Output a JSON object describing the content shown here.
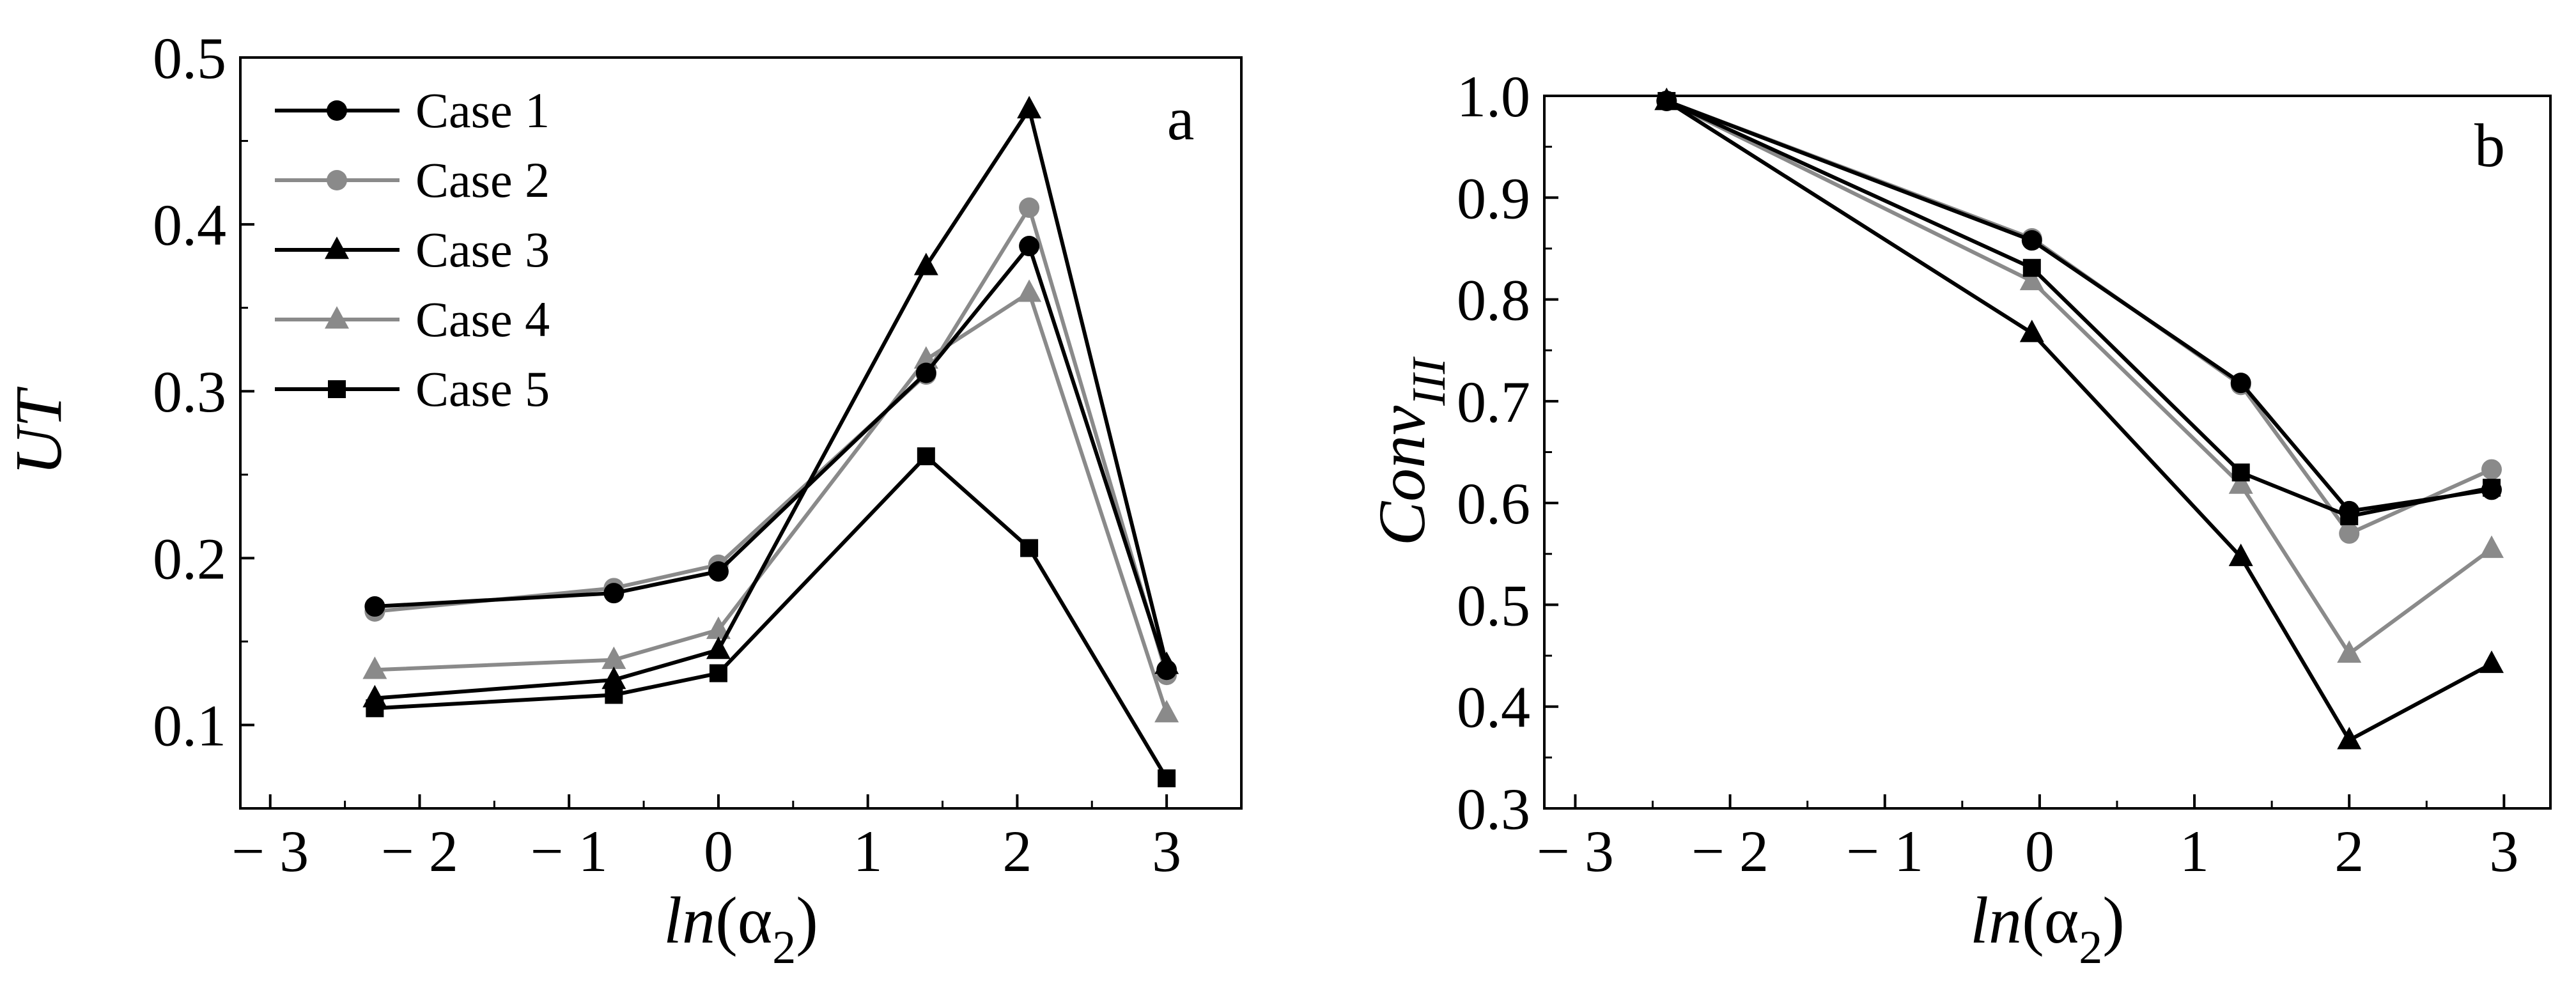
{
  "colors": {
    "black_series": "#000000",
    "gray_series": "#8a8a8a",
    "axes": "#000000"
  },
  "chart_data": [
    {
      "type": "line",
      "panel_label": "a",
      "xlabel": {
        "prefix": "ln",
        "open": "(",
        "symbol": "α",
        "subscript": "2",
        "close": ")"
      },
      "ylabel": "UT",
      "xlim": [
        -3.2,
        3.5
      ],
      "ylim": [
        0.05,
        0.5
      ],
      "xticks": [
        -3,
        -2,
        -1,
        0,
        1,
        2,
        3
      ],
      "xtick_labels": [
        "− 3",
        "− 2",
        "− 1",
        "0",
        "1",
        "2",
        "3"
      ],
      "yticks": [
        0.1,
        0.2,
        0.3,
        0.4,
        0.5
      ],
      "ytick_labels": [
        "0.1",
        "0.2",
        "0.3",
        "0.4",
        "0.5"
      ],
      "legend": "top-left",
      "grid": false,
      "x": [
        -2.3,
        -0.7,
        0,
        1.39,
        2.08,
        3
      ],
      "series": [
        {
          "name": "Case 1",
          "marker": "circle",
          "color": "#000000",
          "values": [
            0.171,
            0.179,
            0.192,
            0.311,
            0.387,
            0.133
          ]
        },
        {
          "name": "Case 2",
          "marker": "circle",
          "color": "#8a8a8a",
          "values": [
            0.168,
            0.182,
            0.196,
            0.31,
            0.41,
            0.13
          ]
        },
        {
          "name": "Case 3",
          "marker": "triangle",
          "color": "#000000",
          "values": [
            0.116,
            0.127,
            0.145,
            0.375,
            0.469,
            0.136
          ]
        },
        {
          "name": "Case 4",
          "marker": "triangle",
          "color": "#8a8a8a",
          "values": [
            0.133,
            0.139,
            0.157,
            0.319,
            0.359,
            0.107
          ]
        },
        {
          "name": "Case 5",
          "marker": "square",
          "color": "#000000",
          "values": [
            0.11,
            0.118,
            0.131,
            0.261,
            0.206,
            0.068
          ]
        }
      ]
    },
    {
      "type": "line",
      "panel_label": "b",
      "xlabel": {
        "prefix": "ln",
        "open": "(",
        "symbol": "α",
        "subscript": "2",
        "close": ")"
      },
      "ylabel": {
        "base": "Conv",
        "subscript": "III"
      },
      "xlim": [
        -3.2,
        3.3
      ],
      "ylim": [
        0.3,
        1.0
      ],
      "xticks": [
        -3,
        -2,
        -1,
        0,
        1,
        2,
        3
      ],
      "xtick_labels": [
        "− 3",
        "− 2",
        "− 1",
        "0",
        "1",
        "2",
        "3"
      ],
      "yticks": [
        0.3,
        0.4,
        0.5,
        0.6,
        0.7,
        0.8,
        0.9,
        1.0
      ],
      "ytick_labels": [
        "0.3",
        "0.4",
        "0.5",
        "0.6",
        "0.7",
        "0.8",
        "0.9",
        "1.0"
      ],
      "grid": false,
      "x": [
        -2.41,
        -0.05,
        1.3,
        2.0,
        2.92
      ],
      "series": [
        {
          "name": "Case 1",
          "marker": "circle",
          "color": "#000000",
          "values": [
            0.995,
            0.858,
            0.718,
            0.592,
            0.613
          ]
        },
        {
          "name": "Case 2",
          "marker": "circle",
          "color": "#8a8a8a",
          "values": [
            0.995,
            0.86,
            0.716,
            0.57,
            0.633
          ]
        },
        {
          "name": "Case 3",
          "marker": "triangle",
          "color": "#000000",
          "values": [
            0.995,
            0.767,
            0.547,
            0.367,
            0.442
          ]
        },
        {
          "name": "Case 4",
          "marker": "triangle",
          "color": "#8a8a8a",
          "values": [
            0.995,
            0.818,
            0.618,
            0.452,
            0.555
          ]
        },
        {
          "name": "Case 5",
          "marker": "square",
          "color": "#000000",
          "values": [
            0.995,
            0.831,
            0.63,
            0.587,
            0.615
          ]
        }
      ]
    }
  ]
}
